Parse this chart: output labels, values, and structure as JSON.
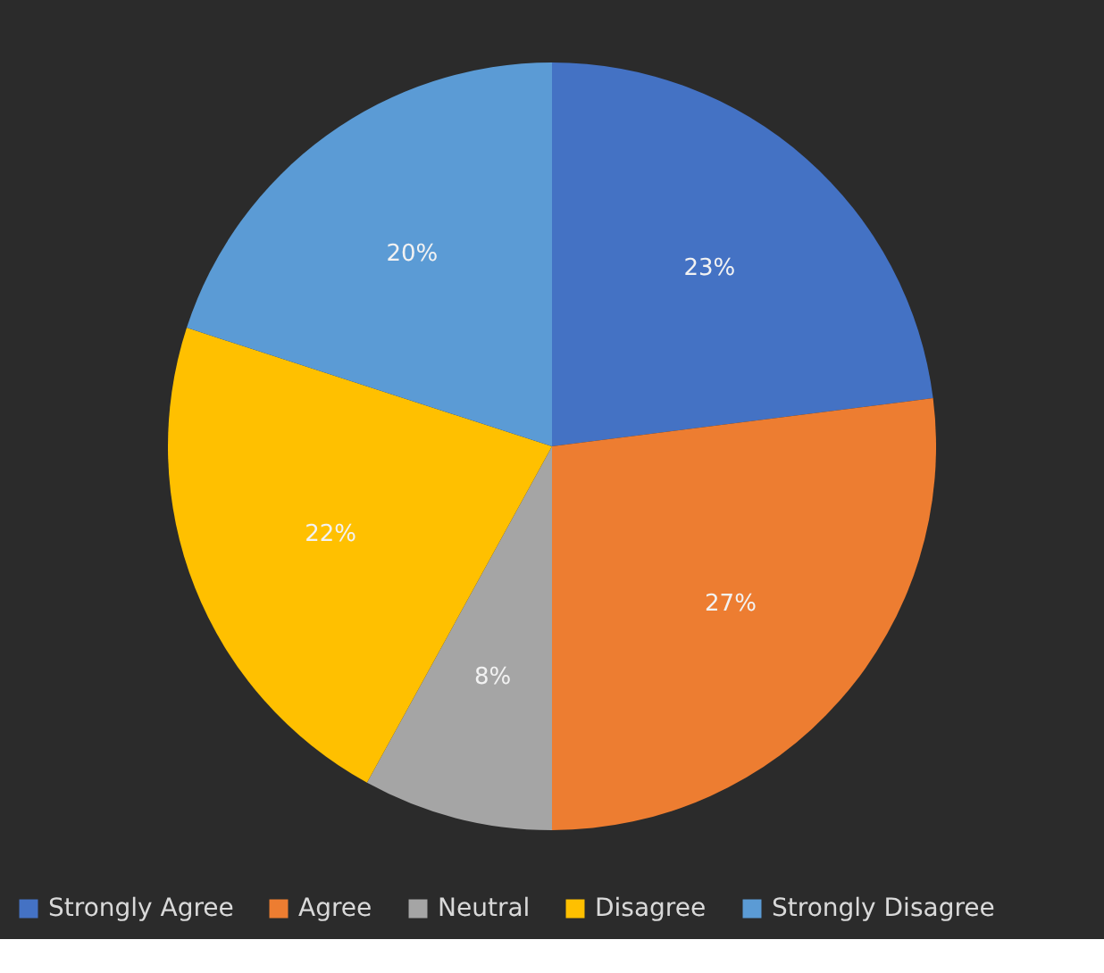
{
  "chart_data": {
    "type": "pie",
    "categories": [
      "Strongly Agree",
      "Agree",
      "Neutral",
      "Disagree",
      "Strongly Disagree"
    ],
    "values": [
      23,
      27,
      8,
      22,
      20
    ],
    "colors": [
      "#4472c4",
      "#ed7d31",
      "#a5a5a5",
      "#ffc000",
      "#5b9bd5"
    ],
    "value_labels": [
      "23%",
      "27%",
      "8%",
      "22%",
      "20%"
    ],
    "legend": "bottom"
  }
}
